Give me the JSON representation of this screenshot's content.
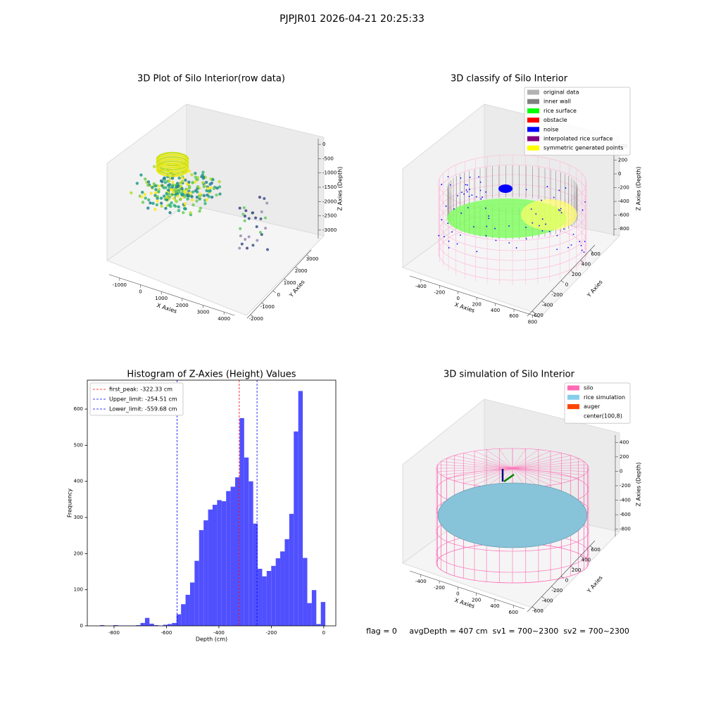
{
  "title": "PJPJR01 2026-04-21 20:25:33",
  "footer": "flag = 0     avgDepth = 407 cm  sv1 = 700~2300  sv2 = 700~2300",
  "chart_data": [
    {
      "type": "scatter3d",
      "title": "3D Plot of Silo Interior(row data)",
      "x_label": "X Axies",
      "y_label": "Y Axies",
      "z_label": "Z Axies (Depth)",
      "xlim": [
        -1500,
        4500
      ],
      "xticks": [
        -1000,
        0,
        1000,
        2000,
        3000,
        4000
      ],
      "ylim": [
        -2300,
        3400
      ],
      "yticks": [
        -2000,
        -1000,
        0,
        1000,
        2000,
        3000
      ],
      "zlim": [
        -3300,
        200
      ],
      "zticks": [
        0,
        -500,
        -1000,
        -1500,
        -2000,
        -2500,
        -3000
      ]
    },
    {
      "type": "scatter3d",
      "title": "3D classify of Silo Interior",
      "x_label": "X Axies",
      "y_label": "Y Axies",
      "z_label": "Z Axies (Depth)",
      "xlim": [
        -520,
        880
      ],
      "xticks": [
        -400,
        -200,
        0,
        200,
        400,
        600,
        800
      ],
      "ylim": [
        -700,
        700
      ],
      "yticks": [
        -600,
        -400,
        -200,
        0,
        200,
        400,
        600
      ],
      "zlim": [
        -900,
        450
      ],
      "zticks": [
        400,
        200,
        0,
        -200,
        -400,
        -600,
        -800
      ],
      "legend": [
        {
          "label": "original data",
          "color": "#b3b3b3"
        },
        {
          "label": "inner wall",
          "color": "#808080"
        },
        {
          "label": "rice surface",
          "color": "#00ff00"
        },
        {
          "label": "obstacle",
          "color": "#ff0000"
        },
        {
          "label": "noise",
          "color": "#0000ff"
        },
        {
          "label": "interpolated rice surface",
          "color": "#800080"
        },
        {
          "label": "symmetric generated points",
          "color": "#ffff00"
        }
      ]
    },
    {
      "type": "histogram",
      "title": "Histogram of Z-Axies (Height) Values",
      "x_label": "Depth (cm)",
      "y_label": "Frequency",
      "color": "#5050ff",
      "bins": [
        -854,
        -836.8,
        -819.6,
        -802.4,
        -785.2,
        -768,
        -750.8,
        -733.6,
        -716.4,
        -699.2,
        -682,
        -664.8,
        -647.6,
        -630.4,
        -613.2,
        -596,
        -578.8,
        -561.6,
        -544.4,
        -527.2,
        -510,
        -492.8,
        -475.6,
        -458.4,
        -441.2,
        -424,
        -406.8,
        -389.6,
        -372.4,
        -355.2,
        -338,
        -320.8,
        -303.6,
        -286.4,
        -269.2,
        -252,
        -234.8,
        -217.6,
        -200.4,
        -183.2,
        -166,
        -148.8,
        -131.6,
        -114.4,
        -97.2,
        -80,
        -62.8,
        -45.6,
        -28.4,
        -11.2,
        6
      ],
      "values": [
        2,
        0,
        0,
        2,
        1,
        1,
        1,
        1,
        2,
        8,
        22,
        6,
        2,
        0,
        3,
        5,
        8,
        32,
        60,
        86,
        120,
        180,
        265,
        292,
        322,
        335,
        348,
        345,
        373,
        385,
        411,
        575,
        466,
        400,
        283,
        158,
        137,
        152,
        166,
        187,
        206,
        240,
        310,
        538,
        650,
        188,
        63,
        99,
        5,
        66
      ],
      "xlim": [
        -902,
        46
      ],
      "xticks": [
        -800,
        -600,
        -400,
        -200,
        0
      ],
      "ylim": [
        0,
        680
      ],
      "yticks": [
        0,
        100,
        200,
        300,
        400,
        500,
        600
      ],
      "vlines": [
        {
          "value": -322.33,
          "label": "first_peak: -322.33 cm",
          "color": "#ff0000"
        },
        {
          "value": -254.51,
          "label": "Upper_limit: -254.51 cm",
          "color": "#0000ff"
        },
        {
          "value": -559.68,
          "label": "Lower_limit: -559.68 cm",
          "color": "#0000ff"
        }
      ],
      "legend_corner": "upper left"
    },
    {
      "type": "surface3d",
      "title": "3D simulation of Silo Interior",
      "x_label": "X Axies",
      "y_label": "Y Axies",
      "z_label": "Z Axies (Depth)",
      "xlim": [
        -520,
        720
      ],
      "xticks": [
        -400,
        -200,
        0,
        200,
        400,
        600
      ],
      "ylim": [
        -700,
        700
      ],
      "yticks": [
        -600,
        -400,
        -200,
        0,
        200,
        400,
        600
      ],
      "zlim": [
        -900,
        500
      ],
      "zticks": [
        400,
        200,
        0,
        -200,
        -400,
        -600,
        -800
      ],
      "legend": [
        {
          "label": "silo",
          "color": "#ff69b4"
        },
        {
          "label": "rice simulation",
          "color": "#87ceeb"
        },
        {
          "label": "auger",
          "color": "#ff4500"
        },
        {
          "label": "center(100,8)",
          "color": "#ffffff"
        }
      ]
    }
  ]
}
